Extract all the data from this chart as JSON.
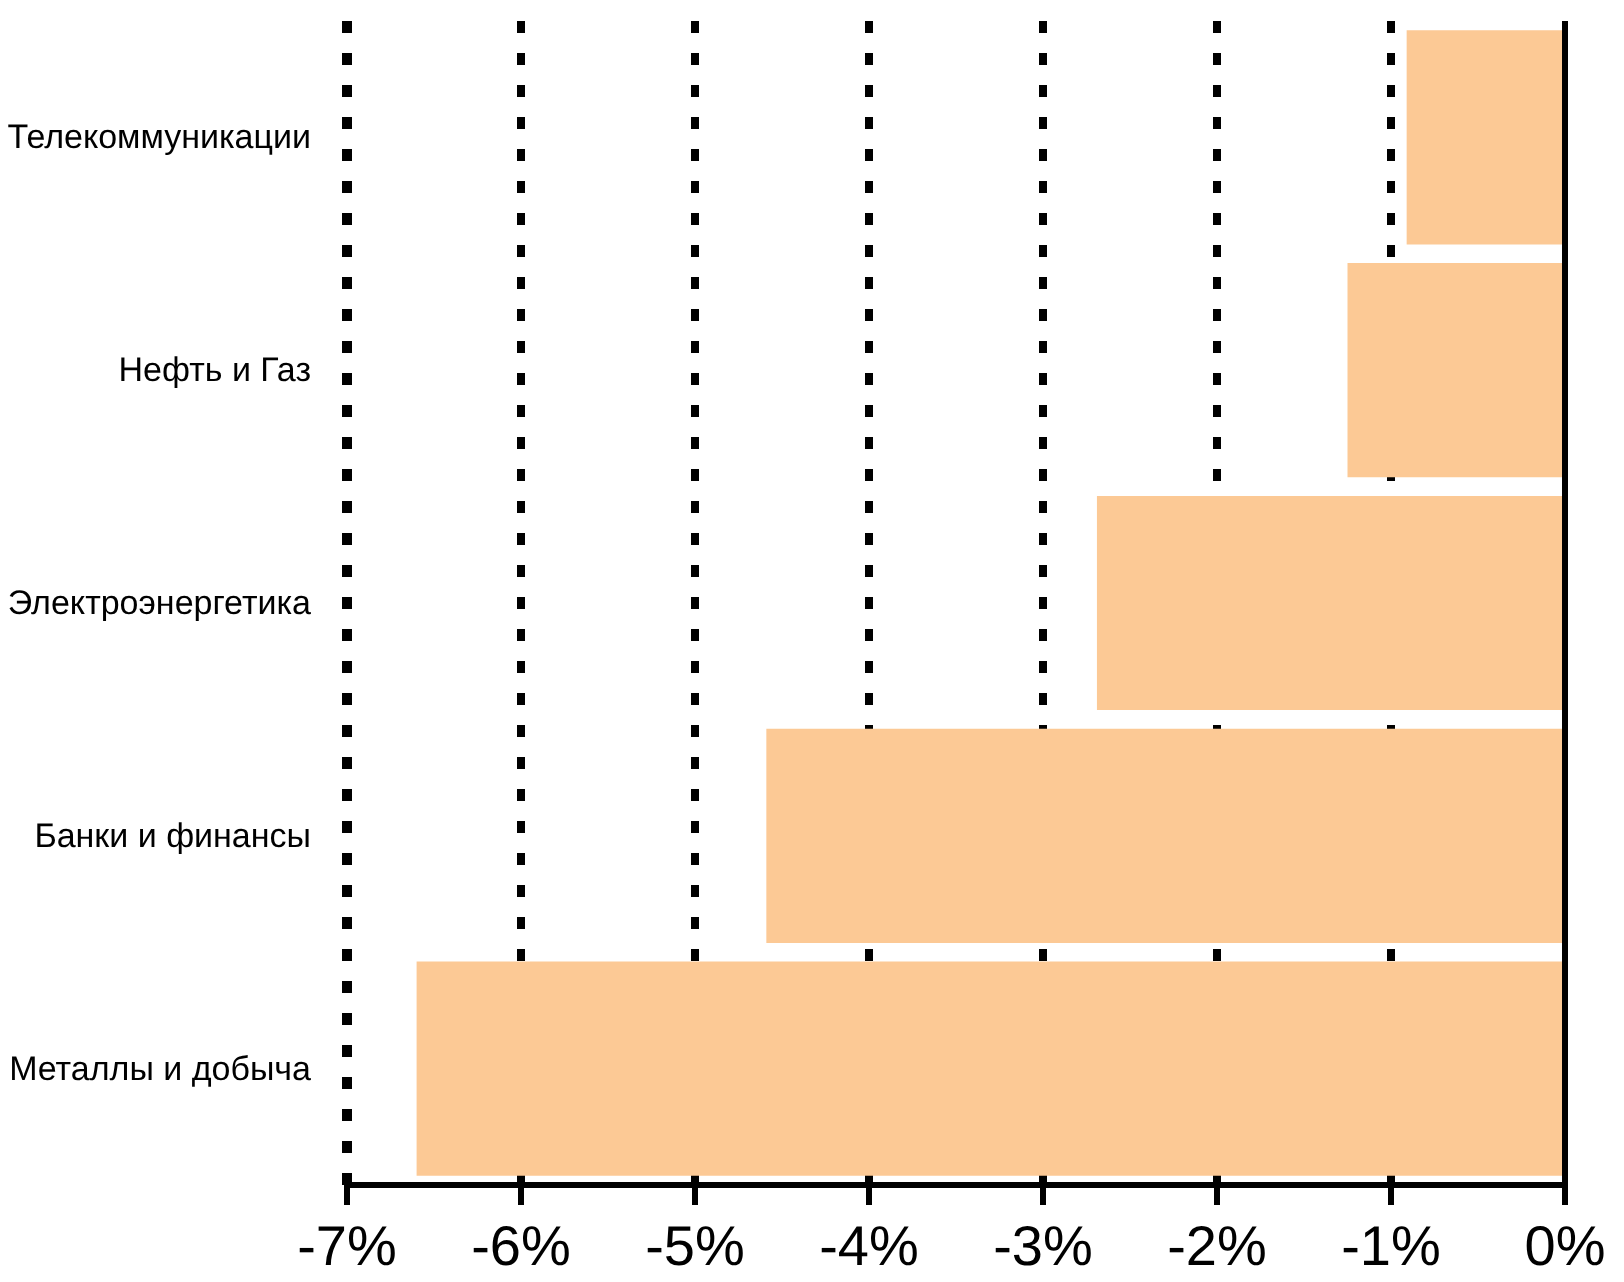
{
  "chart_data": {
    "type": "bar",
    "orientation": "horizontal",
    "categories": [
      "Телекоммуникации",
      "Нефть и Газ",
      "Электроэнергетика",
      "Банки и финансы",
      "Металлы и добыча"
    ],
    "values": [
      -0.91,
      -1.25,
      -2.69,
      -4.59,
      -6.6
    ],
    "color": "#fcc995",
    "xlim": [
      -7,
      0
    ],
    "xticks": [
      {
        "value": -7,
        "label": "-7%"
      },
      {
        "value": -6,
        "label": "-6%"
      },
      {
        "value": -5,
        "label": "-5%"
      },
      {
        "value": -4,
        "label": "-4%"
      },
      {
        "value": -3,
        "label": "-3%"
      },
      {
        "value": -2,
        "label": "-2%"
      },
      {
        "value": -1,
        "label": "-1%"
      },
      {
        "value": 0,
        "label": "0%"
      }
    ],
    "grid": "x"
  }
}
